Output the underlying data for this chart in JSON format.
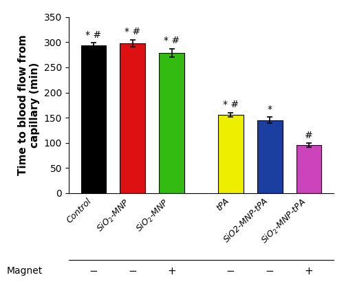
{
  "categories": [
    "Control",
    "SiO$_2$-MNP",
    "SiO$_2$-MNP",
    "tPA",
    "SiO2-MNP-tPA",
    "SiO$_2$-MNP-tPA"
  ],
  "values": [
    294,
    298,
    279,
    156,
    145,
    95
  ],
  "errors": [
    5,
    7,
    8,
    4,
    6,
    4
  ],
  "bar_colors": [
    "#000000",
    "#dd1111",
    "#33bb11",
    "#eeee00",
    "#1a3fa0",
    "#cc44bb"
  ],
  "annotations": [
    "* #",
    "* #",
    "* #",
    "* #",
    "*",
    "#"
  ],
  "x_positions": [
    0,
    1,
    2,
    3.5,
    4.5,
    5.5
  ],
  "magnet_labels": [
    "−",
    "−",
    "+",
    "−",
    "−",
    "+"
  ],
  "ylabel": "Time to blood flow from\ncapillary (min)",
  "ylim": [
    0,
    350
  ],
  "yticks": [
    0,
    50,
    100,
    150,
    200,
    250,
    300,
    350
  ],
  "magnet_text": "Magnet",
  "ylabel_fontsize": 11,
  "tick_fontsize": 10,
  "annot_fontsize": 10,
  "xtick_fontsize": 9,
  "background_color": "#ffffff",
  "bar_width": 0.65
}
